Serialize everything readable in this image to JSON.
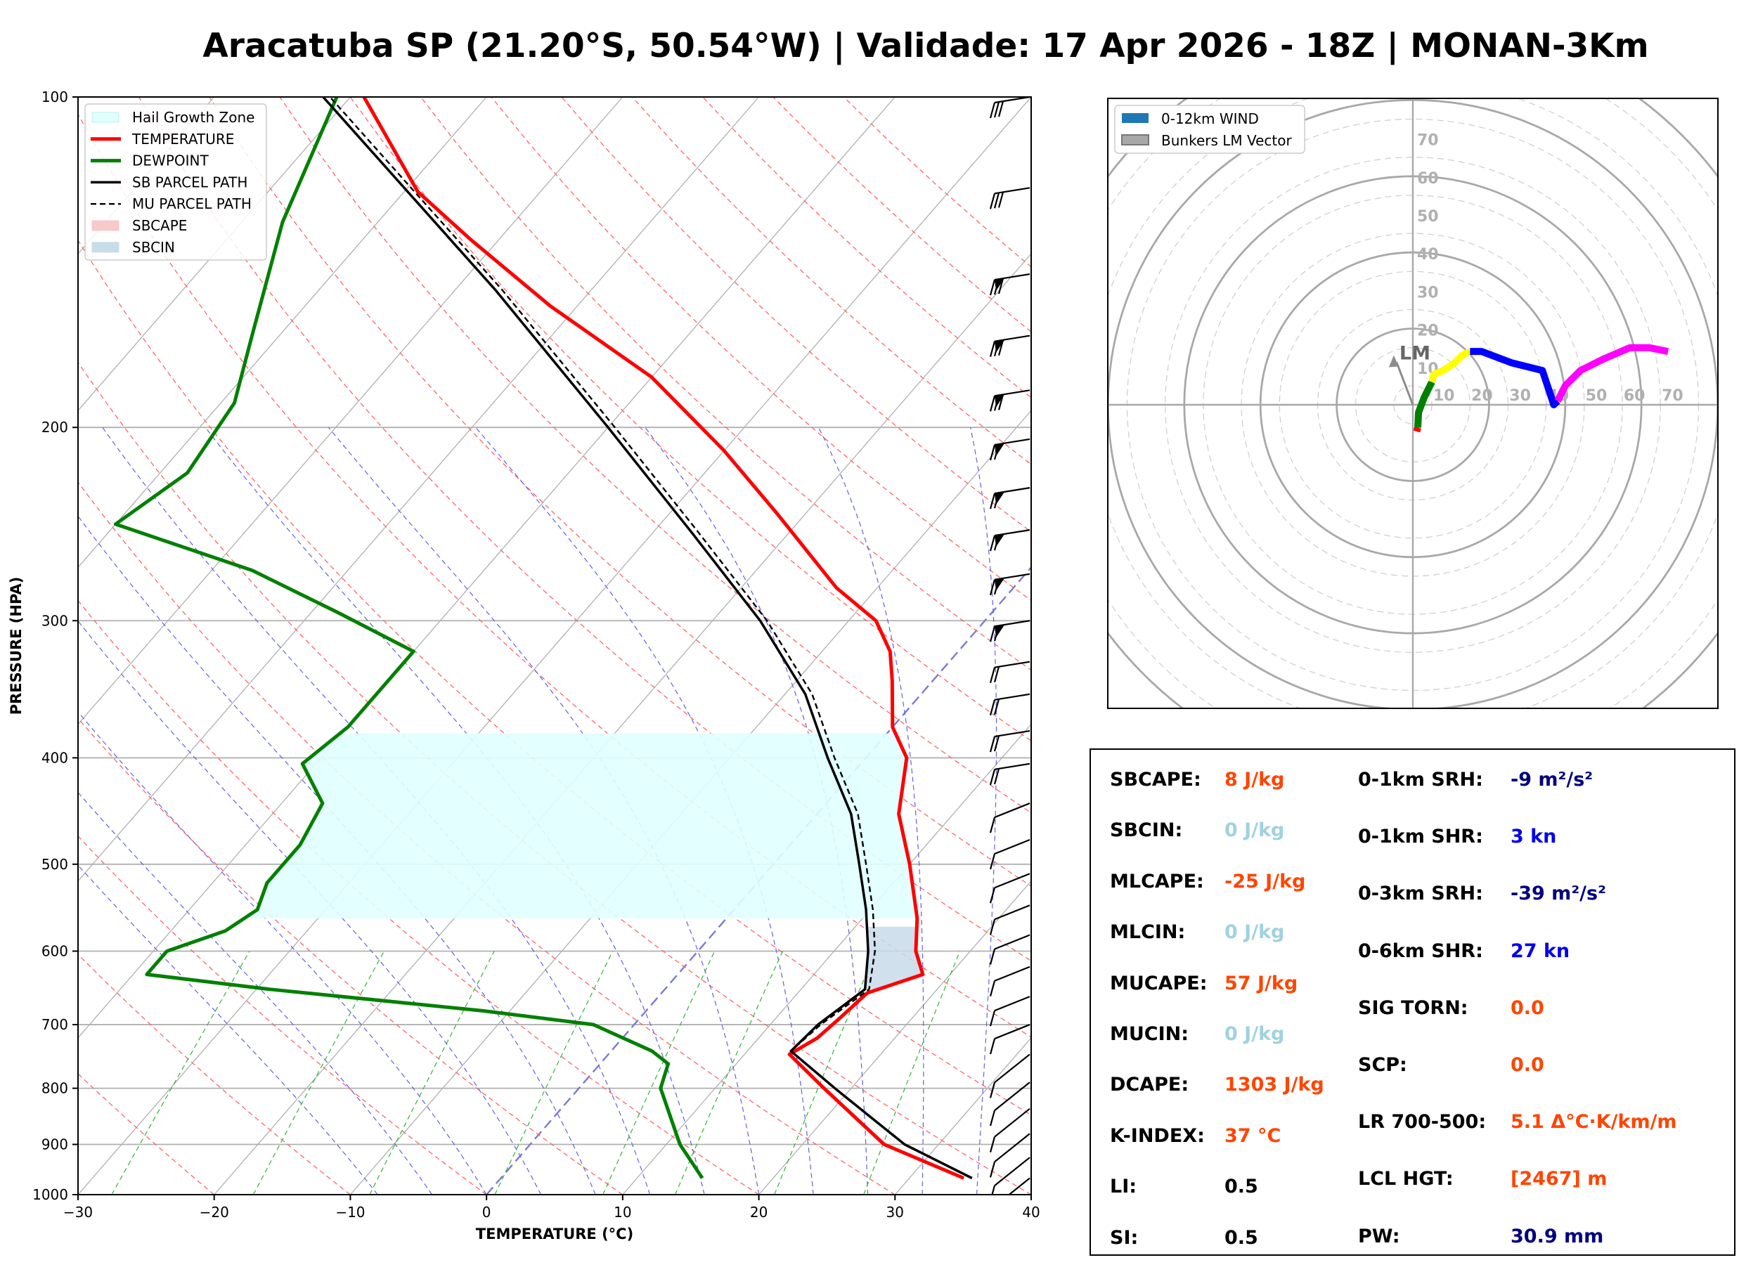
{
  "title": "Aracatuba SP (21.20°S, 50.54°W) | Validade: 17 Apr 2026 - 18Z | MONAN-3Km",
  "colors": {
    "temperature": "#ff0000",
    "dewpoint": "#008000",
    "parcel": "#000000",
    "hail": "#e0ffff",
    "orange": "#ff4500",
    "lightblue": "#a0d2e0",
    "navy": "#000080",
    "blue": "#0000ee"
  },
  "chart_data": [
    {
      "type": "line",
      "name": "skew-t",
      "xlabel": "TEMPERATURE (°C)",
      "ylabel": "PRESSURE (HPA)",
      "xlim": [
        -30,
        40
      ],
      "ylim": [
        1000,
        100
      ],
      "x_ticks": [
        "−30",
        "−20",
        "−10",
        "0",
        "10",
        "20",
        "30",
        "40"
      ],
      "x_tick_values": [
        -30,
        -20,
        -10,
        0,
        10,
        20,
        30,
        40
      ],
      "y_ticks": [
        "1000",
        "900",
        "800",
        "700",
        "600",
        "500",
        "400",
        "300",
        "200",
        "100"
      ],
      "y_tick_values": [
        1000,
        900,
        800,
        700,
        600,
        500,
        400,
        300,
        200,
        100
      ],
      "legend": [
        "Hail Growth Zone",
        "TEMPERATURE",
        "DEWPOINT",
        "SB PARCEL PATH",
        "MU PARCEL PATH",
        "SBCAPE",
        "SBCIN"
      ],
      "legend_position": "upper-left",
      "hail_zone": {
        "p_bottom": 560,
        "p_top": 380
      },
      "series": [
        {
          "name": "TEMPERATURE",
          "points": [
            [
              966,
              34
            ],
            [
              900,
              26
            ],
            [
              800,
              18
            ],
            [
              745,
              13.3
            ],
            [
              720,
              14.3
            ],
            [
              690,
              14.7
            ],
            [
              655,
              15.1
            ],
            [
              630,
              18
            ],
            [
              600,
              16
            ],
            [
              560,
              14
            ],
            [
              500,
              10
            ],
            [
              450,
              6
            ],
            [
              400,
              3
            ],
            [
              375,
              0
            ],
            [
              340,
              -3
            ],
            [
              320,
              -5
            ],
            [
              300,
              -8
            ],
            [
              280,
              -13
            ],
            [
              240,
              -22
            ],
            [
              210,
              -30
            ],
            [
              180,
              -40
            ],
            [
              155,
              -52
            ],
            [
              135,
              -62
            ],
            [
              122,
              -69
            ],
            [
              100,
              -79
            ]
          ]
        },
        {
          "name": "DEWPOINT",
          "points": [
            [
              966,
              14.8
            ],
            [
              900,
              11
            ],
            [
              800,
              6
            ],
            [
              760,
              5
            ],
            [
              740,
              3
            ],
            [
              700,
              -3
            ],
            [
              680,
              -12
            ],
            [
              650,
              -29
            ],
            [
              630,
              -39
            ],
            [
              600,
              -39
            ],
            [
              575,
              -36
            ],
            [
              550,
              -35
            ],
            [
              520,
              -36
            ],
            [
              480,
              -36
            ],
            [
              440,
              -37
            ],
            [
              405,
              -41
            ],
            [
              375,
              -40
            ],
            [
              335,
              -40
            ],
            [
              320,
              -40
            ],
            [
              295,
              -48
            ],
            [
              270,
              -57
            ],
            [
              245,
              -70
            ],
            [
              220,
              -68
            ],
            [
              190,
              -69
            ],
            [
              165,
              -72
            ],
            [
              130,
              -77
            ],
            [
              100,
              -81
            ]
          ]
        },
        {
          "name": "SB PARCEL PATH",
          "points": [
            [
              966,
              34.6
            ],
            [
              900,
              27.5
            ],
            [
              800,
              18.8
            ],
            [
              740,
              13.2
            ],
            [
              700,
              13.5
            ],
            [
              650,
              14.7
            ],
            [
              600,
              12.5
            ],
            [
              550,
              9.7
            ],
            [
              500,
              6.3
            ],
            [
              450,
              2.5
            ],
            [
              400,
              -2.8
            ],
            [
              350,
              -8.5
            ],
            [
              300,
              -16.5
            ],
            [
              250,
              -27
            ],
            [
              200,
              -40
            ],
            [
              150,
              -57
            ],
            [
              100,
              -82
            ]
          ]
        },
        {
          "name": "MU PARCEL PATH",
          "points": [
            [
              966,
              34.6
            ],
            [
              900,
              27.5
            ],
            [
              800,
              18.8
            ],
            [
              740,
              13.2
            ],
            [
              700,
              13.7
            ],
            [
              650,
              15
            ],
            [
              600,
              13
            ],
            [
              550,
              10.2
            ],
            [
              500,
              6.8
            ],
            [
              450,
              3
            ],
            [
              400,
              -2.3
            ],
            [
              350,
              -8
            ],
            [
              300,
              -16
            ],
            [
              250,
              -26.5
            ],
            [
              200,
              -39.5
            ],
            [
              150,
              -56.5
            ],
            [
              100,
              -81.5
            ]
          ]
        }
      ]
    },
    {
      "type": "line",
      "name": "hodograph",
      "legend": [
        "0-12km WIND",
        "Bunkers LM Vector"
      ],
      "legend_position": "upper-left",
      "ring_labels": [
        "10",
        "20",
        "30",
        "40",
        "50",
        "60",
        "70"
      ],
      "ring_values": [
        10,
        20,
        30,
        40,
        50,
        60,
        70
      ],
      "lm_label": "LM",
      "lm_vector": [
        -5,
        13
      ],
      "series": [
        {
          "name": "segment-red",
          "color": "#ff0000",
          "points": [
            [
              1,
              -7
            ],
            [
              1.3,
              -6
            ]
          ]
        },
        {
          "name": "segment-green",
          "color": "#008000",
          "points": [
            [
              1.3,
              -6
            ],
            [
              1.5,
              -2
            ],
            [
              3,
              2
            ],
            [
              5,
              6
            ]
          ]
        },
        {
          "name": "segment-yellow",
          "color": "#ffff00",
          "points": [
            [
              5,
              6
            ],
            [
              5.5,
              8
            ],
            [
              8,
              9
            ],
            [
              11,
              11
            ],
            [
              13,
              13
            ],
            [
              15,
              14
            ]
          ]
        },
        {
          "name": "segment-blue",
          "color": "#0000ff",
          "points": [
            [
              15,
              14
            ],
            [
              18,
              14
            ],
            [
              26,
              11
            ],
            [
              34,
              9
            ],
            [
              37,
              0
            ],
            [
              38,
              1
            ]
          ]
        },
        {
          "name": "segment-magenta",
          "color": "#ff00ff",
          "points": [
            [
              38,
              1
            ],
            [
              40,
              5
            ],
            [
              44,
              9
            ],
            [
              50,
              12
            ],
            [
              57,
              15
            ],
            [
              62,
              15
            ],
            [
              67,
              14
            ]
          ]
        }
      ]
    }
  ],
  "params": {
    "left": [
      {
        "label": "SBCAPE:",
        "value": "8 J/kg",
        "color": "#ff4500"
      },
      {
        "label": "SBCIN:",
        "value": "0 J/kg",
        "color": "#a0d2e0"
      },
      {
        "label": "MLCAPE:",
        "value": "-25 J/kg",
        "color": "#ff4500"
      },
      {
        "label": "MLCIN:",
        "value": "0 J/kg",
        "color": "#a0d2e0"
      },
      {
        "label": "MUCAPE:",
        "value": "57 J/kg",
        "color": "#ff4500"
      },
      {
        "label": "MUCIN:",
        "value": "0 J/kg",
        "color": "#a0d2e0"
      },
      {
        "label": "DCAPE:",
        "value": "1303 J/kg",
        "color": "#ff4500"
      },
      {
        "label": "K-INDEX:",
        "value": "37 °C",
        "color": "#ff4500"
      },
      {
        "label": "LI:",
        "value": "0.5",
        "color": "#000000"
      },
      {
        "label": "SI:",
        "value": "0.5",
        "color": "#000000"
      }
    ],
    "right": [
      {
        "label": "0-1km SRH:",
        "value": "-9 m²/s²",
        "color": "#000080"
      },
      {
        "label": "0-1km SHR:",
        "value": "3 kn",
        "color": "#0000ee"
      },
      {
        "label": "0-3km SRH:",
        "value": "-39 m²/s²",
        "color": "#000080"
      },
      {
        "label": "0-6km SHR:",
        "value": "27 kn",
        "color": "#0000ee"
      },
      {
        "label": "SIG TORN:",
        "value": "0.0",
        "color": "#ff4500"
      },
      {
        "label": "SCP:",
        "value": "0.0",
        "color": "#ff4500"
      },
      {
        "label": "LR 700-500:",
        "value": "5.1 Δ°C·K/km/m",
        "color": "#ff4500"
      },
      {
        "label": "LCL HGT:",
        "value": "[2467] m",
        "color": "#ff4500"
      },
      {
        "label": "PW:",
        "value": "30.9 mm",
        "color": "#000080"
      }
    ]
  }
}
